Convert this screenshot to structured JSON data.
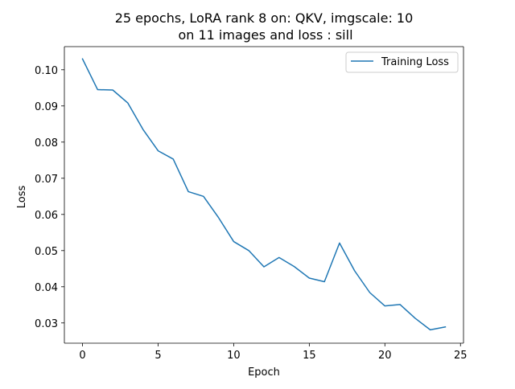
{
  "chart_data": {
    "type": "line",
    "title": "25 epochs, LoRA rank 8 on: QKV, imgscale: 10\non 11 images and loss : sill",
    "title_lines": [
      "25 epochs, LoRA rank 8 on: QKV, imgscale: 10",
      "on 11 images and loss : sill"
    ],
    "xlabel": "Epoch",
    "ylabel": "Loss",
    "xlim": [
      -1.2,
      25.2
    ],
    "ylim": [
      0.0244,
      0.1064
    ],
    "xticks": [
      0,
      5,
      10,
      15,
      20,
      25
    ],
    "xtick_labels": [
      "0",
      "5",
      "10",
      "15",
      "20",
      "25"
    ],
    "yticks": [
      0.03,
      0.04,
      0.05,
      0.06,
      0.07,
      0.08,
      0.09,
      0.1
    ],
    "ytick_labels": [
      "0.03",
      "0.04",
      "0.05",
      "0.06",
      "0.07",
      "0.08",
      "0.09",
      "0.10"
    ],
    "grid": false,
    "legend_position": "top-right",
    "series": [
      {
        "name": "Training Loss",
        "color": "#1f77b4",
        "x": [
          0,
          1,
          2,
          3,
          4,
          5,
          6,
          7,
          8,
          9,
          10,
          11,
          12,
          13,
          14,
          15,
          16,
          17,
          18,
          19,
          20,
          21,
          22,
          23,
          24
        ],
        "values": [
          0.103,
          0.0945,
          0.0944,
          0.0908,
          0.0835,
          0.0776,
          0.0753,
          0.0663,
          0.065,
          0.0591,
          0.0525,
          0.05,
          0.0455,
          0.0481,
          0.0456,
          0.0424,
          0.0414,
          0.0521,
          0.0444,
          0.0384,
          0.0347,
          0.0351,
          0.0313,
          0.0281,
          0.0289
        ]
      }
    ]
  }
}
